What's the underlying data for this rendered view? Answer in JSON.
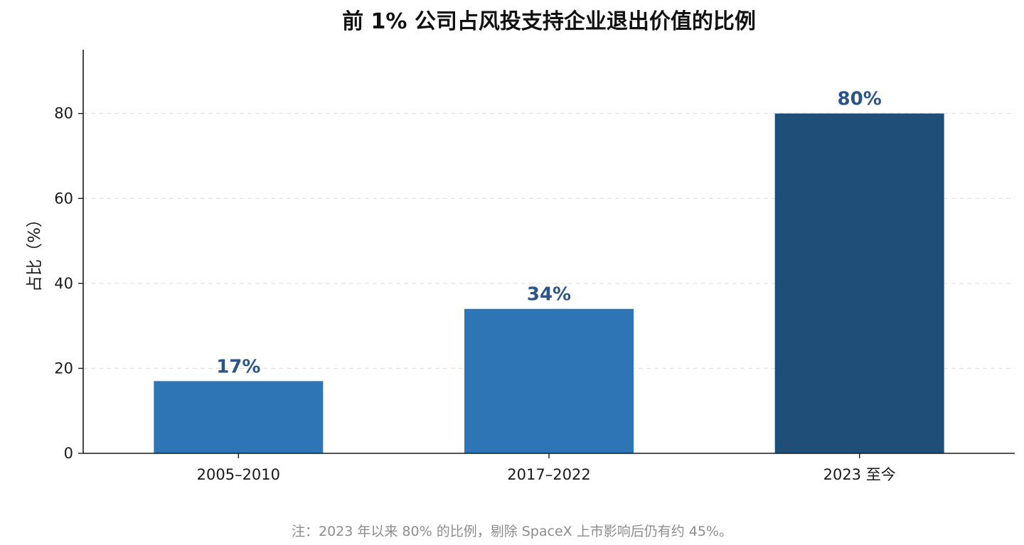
{
  "chart_data": {
    "type": "bar",
    "title": "前 1% 公司占风投支持企业退出价值的比例",
    "xlabel": "",
    "ylabel": "占比（%）",
    "categories": [
      "2005–2010",
      "2017–2022",
      "2023 至今"
    ],
    "values": [
      17,
      34,
      80
    ],
    "data_labels": [
      "17%",
      "34%",
      "80%"
    ],
    "bar_colors": [
      "#2e75b6",
      "#2e75b6",
      "#1f4e79"
    ],
    "label_color": "#2a5586",
    "ylim": [
      0,
      95
    ],
    "yticks": [
      0,
      20,
      40,
      60,
      80
    ],
    "ytick_labels": [
      "0",
      "20",
      "40",
      "60",
      "80"
    ],
    "grid": "horizontal dashed",
    "note": "注：2023 年以来 80% 的比例，剔除 SpaceX 上市影响后仍有约 45%。"
  }
}
